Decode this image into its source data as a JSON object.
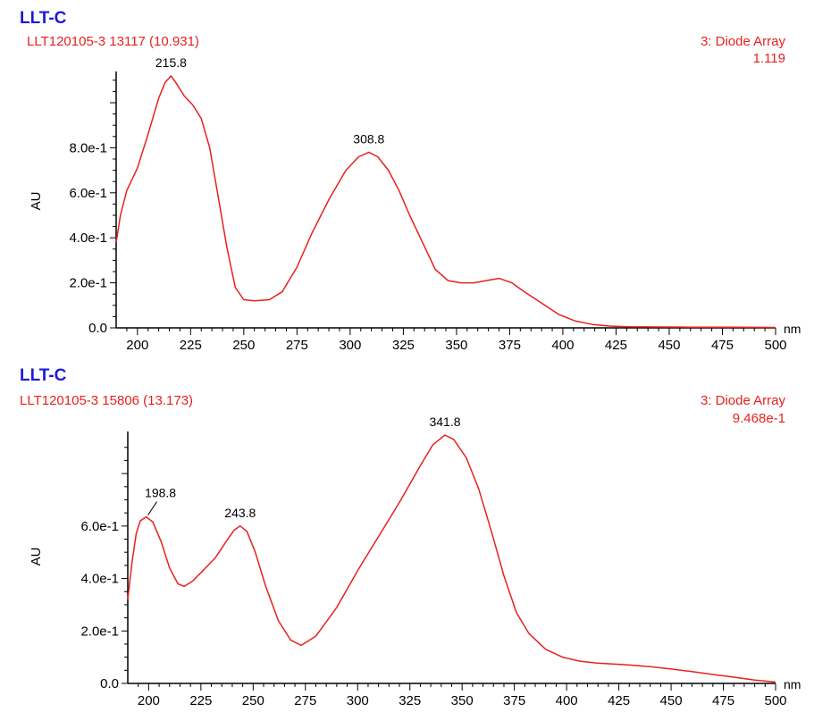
{
  "colors": {
    "title": "#1a1adc",
    "trace": "#e8201e",
    "axis": "#000000"
  },
  "chart_data": [
    {
      "type": "line",
      "title": "LLT-C",
      "subtitle": "LLT120105-3 13117 (10.931)",
      "detector": "3: Diode Array",
      "max_value": "1.119",
      "xlabel": "nm",
      "ylabel": "AU",
      "xlim": [
        190,
        500
      ],
      "ylim": [
        0,
        1.119
      ],
      "grid": false,
      "xticks": [
        200,
        225,
        250,
        275,
        300,
        325,
        350,
        375,
        400,
        425,
        450,
        475,
        500
      ],
      "yticks": [
        {
          "value": 0.0,
          "label": "0.0"
        },
        {
          "value": 0.2,
          "label": "2.0e-1"
        },
        {
          "value": 0.4,
          "label": "4.0e-1"
        },
        {
          "value": 0.6,
          "label": "6.0e-1"
        },
        {
          "value": 0.8,
          "label": "8.0e-1"
        }
      ],
      "peaks": [
        {
          "x": 215.8,
          "y": 1.119,
          "label": "215.8"
        },
        {
          "x": 308.8,
          "y": 0.78,
          "label": "308.8"
        }
      ],
      "series": [
        {
          "x": [
            190,
            192,
            195,
            200,
            205,
            210,
            213,
            215.8,
            218,
            222,
            226,
            230,
            234,
            238,
            242,
            246,
            250,
            255,
            262,
            268,
            275,
            282,
            290,
            298,
            304,
            308.8,
            313,
            318,
            323,
            328,
            334,
            340,
            346,
            352,
            358,
            364,
            370,
            376,
            382,
            390,
            398,
            406,
            414,
            422,
            430,
            445,
            460,
            480,
            500
          ],
          "y": [
            0.38,
            0.5,
            0.61,
            0.71,
            0.86,
            1.02,
            1.09,
            1.119,
            1.09,
            1.03,
            0.99,
            0.93,
            0.8,
            0.58,
            0.36,
            0.18,
            0.125,
            0.12,
            0.125,
            0.16,
            0.27,
            0.42,
            0.57,
            0.7,
            0.76,
            0.78,
            0.76,
            0.7,
            0.61,
            0.5,
            0.38,
            0.26,
            0.21,
            0.2,
            0.2,
            0.21,
            0.22,
            0.2,
            0.16,
            0.11,
            0.06,
            0.03,
            0.015,
            0.008,
            0.005,
            0.004,
            0.003,
            0.003,
            0.002
          ]
        }
      ]
    },
    {
      "type": "line",
      "title": "LLT-C",
      "subtitle": "LLT120105-3 15806 (13.173)",
      "detector": "3: Diode Array",
      "max_value": "9.468e-1",
      "xlabel": "nm",
      "ylabel": "AU",
      "xlim": [
        190,
        500
      ],
      "ylim": [
        0,
        0.9468
      ],
      "grid": false,
      "xticks": [
        200,
        225,
        250,
        275,
        300,
        325,
        350,
        375,
        400,
        425,
        450,
        475,
        500
      ],
      "yticks": [
        {
          "value": 0.0,
          "label": "0.0"
        },
        {
          "value": 0.2,
          "label": "2.0e-1"
        },
        {
          "value": 0.4,
          "label": "4.0e-1"
        },
        {
          "value": 0.6,
          "label": "6.0e-1"
        }
      ],
      "peaks": [
        {
          "x": 198.8,
          "y": 0.635,
          "label": "198.8"
        },
        {
          "x": 243.8,
          "y": 0.6,
          "label": "243.8"
        },
        {
          "x": 341.8,
          "y": 0.9468,
          "label": "341.8"
        }
      ],
      "series": [
        {
          "x": [
            190,
            192,
            194,
            196,
            198.8,
            202,
            206,
            210,
            214,
            217,
            221,
            226,
            232,
            237,
            241,
            243.8,
            247,
            251,
            256,
            262,
            268,
            273,
            280,
            290,
            300,
            310,
            320,
            330,
            336,
            341.8,
            346,
            352,
            358,
            364,
            370,
            376,
            382,
            390,
            398,
            406,
            414,
            422,
            430,
            440,
            450,
            460,
            470,
            480,
            490,
            500
          ],
          "y": [
            0.32,
            0.46,
            0.57,
            0.62,
            0.635,
            0.615,
            0.54,
            0.44,
            0.38,
            0.37,
            0.39,
            0.43,
            0.48,
            0.54,
            0.585,
            0.6,
            0.58,
            0.5,
            0.37,
            0.24,
            0.165,
            0.145,
            0.18,
            0.29,
            0.43,
            0.56,
            0.69,
            0.83,
            0.91,
            0.9468,
            0.93,
            0.86,
            0.74,
            0.58,
            0.41,
            0.27,
            0.19,
            0.13,
            0.1,
            0.085,
            0.078,
            0.074,
            0.07,
            0.064,
            0.055,
            0.045,
            0.034,
            0.024,
            0.013,
            0.005
          ]
        }
      ]
    }
  ]
}
